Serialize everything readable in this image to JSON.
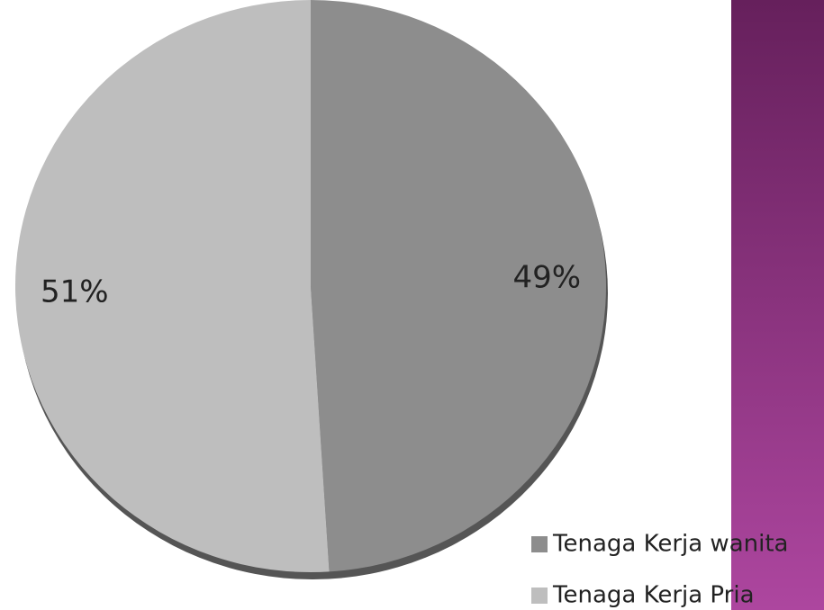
{
  "chart_data": {
    "type": "pie",
    "categories": [
      "Tenaga Kerja wanita",
      "Tenaga Kerja Pria"
    ],
    "values": [
      49,
      51
    ],
    "value_labels": [
      "49%",
      "51%"
    ],
    "colors": [
      "#8d8d8d",
      "#bebebe"
    ],
    "legend": "bottom-right"
  }
}
